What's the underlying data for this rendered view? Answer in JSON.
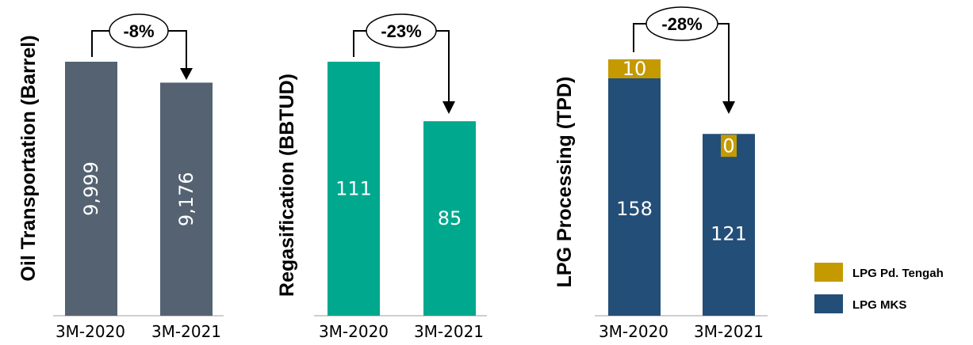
{
  "chart_data": [
    {
      "type": "bar",
      "ylabel": "Oil Transportation (Barrel)",
      "categories": [
        "3M-2020",
        "3M-2021"
      ],
      "values": [
        9999,
        9176
      ],
      "value_labels": [
        "9,999",
        "9,176"
      ],
      "change_label": "-8%",
      "color": "#546271",
      "label_orientation": "vertical"
    },
    {
      "type": "bar",
      "ylabel": "Regasification (BBTUD)",
      "categories": [
        "3M-2020",
        "3M-2021"
      ],
      "values": [
        111,
        85
      ],
      "value_labels": [
        "111",
        "85"
      ],
      "change_label": "-23%",
      "color": "#00A88E",
      "label_orientation": "horizontal"
    },
    {
      "type": "bar",
      "stacked": true,
      "ylabel": "LPG Processing  (TPD)",
      "categories": [
        "3M-2020",
        "3M-2021"
      ],
      "series": [
        {
          "name": "LPG MKS",
          "values": [
            158,
            121
          ],
          "value_labels": [
            "158",
            "121"
          ],
          "color": "#234E78"
        },
        {
          "name": "LPG Pd. Tengah",
          "values": [
            10,
            0
          ],
          "value_labels": [
            "10",
            "0"
          ],
          "color": "#C49A00"
        }
      ],
      "change_label": "-28%",
      "legend_position": "bottom-right"
    }
  ]
}
